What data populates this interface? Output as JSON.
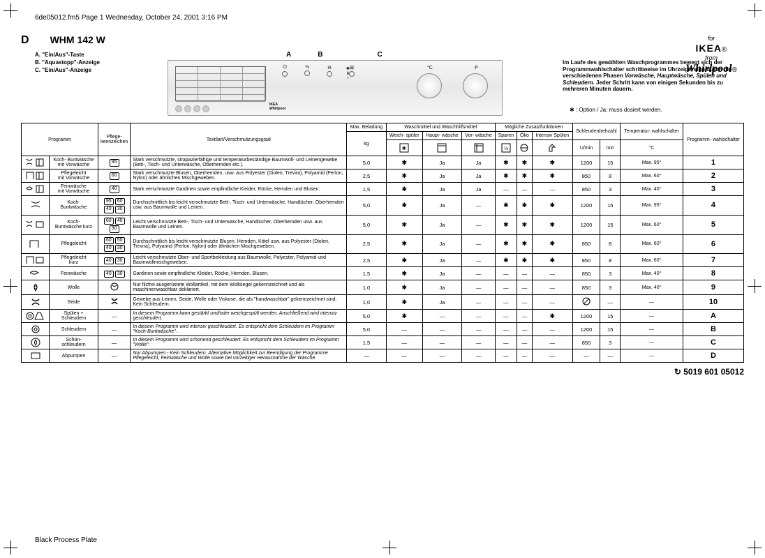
{
  "header_line": "6de05012.fm5  Page 1  Wednesday, October 24, 2001  3:16 PM",
  "logo": {
    "for": "for",
    "ikea": "IKEA",
    "from": "from",
    "whirlpool": "Whirlpool",
    "reg": "®"
  },
  "title": {
    "letter": "D",
    "model": "WHM 142 W"
  },
  "legend": {
    "a": "A. \"Ein/Aus\"-Taste",
    "b": "B. \"Aquastopp\"-Anzeige",
    "c": "C. \"Ein/Aus\"-Anzeige"
  },
  "panel_labels": {
    "a": "A",
    "b": "B",
    "c": "C"
  },
  "right_text": {
    "line": "Im Laufe des gewählten Waschprogrammes bewegt sich der Programmwahlschalter schrittweise im Uhrzeigersinn durch die verschiedenen Phasen ",
    "phases": "Vorwäsche, Hauptwäsche, Spülen und Schleudern.",
    "tail": " Jeder Schritt kann von einigen Sekunden bis zu mehreren Minuten dauern."
  },
  "option_note": "✱ : Option / Ja: muss dosiert werden.",
  "table_headers": {
    "programm": "Programm",
    "pflege": "Pflege-\nkennzeichen",
    "textil": "Textilart/Verschmutzungsgrad",
    "max_beladung": "Max.\nBeladung",
    "waschmittel": "Waschmittel und\nWaschhilfsmittel",
    "weich": "Weich-\nspüler",
    "haupt": "Haupt-\nwäsche",
    "vor": "Vor-\nwäsche",
    "zusatz": "Mögliche Zusatzfunktionen",
    "sparen": "Sparen",
    "oeko": "Öko",
    "intensiv": "Intensiv\nSpülen",
    "schleuder": "Schleuderdrehzahl",
    "umin": "U/min",
    "min": "min",
    "temp": "Temperatur-\nwahlschalter",
    "tempunit": "°C",
    "progwahl": "Programm-\nwahlschalter",
    "kg": "kg"
  },
  "rows": [
    {
      "name": "Koch- Buntwäsche\nmit Vorwäsche",
      "care": [
        "95"
      ],
      "desc": "Stark verschmutzte, strapazierfähige und temperaturbeständige Baumwoll- und Leinengewebe (Bett-, Tisch- und Unterwäsche, Oberhemden etc.).",
      "kg": "5,0",
      "w": "*",
      "h": "Ja",
      "v": "Ja",
      "s": "*",
      "o": "*",
      "i": "*",
      "rpm": "1200",
      "m": "15",
      "t": "Max. 95°",
      "p": "1"
    },
    {
      "name": "Pflegeleicht\nmit Vorwäsche",
      "care": [
        "60"
      ],
      "desc": "Stark verschmutzte Blusen, Oberhemden, usw. aus Polyester (Diolen, Trevira), Polyamid (Perlon, Nylon) oder ähnlichen Mischgeweben.",
      "kg": "2,5",
      "w": "*",
      "h": "Ja",
      "v": "Ja",
      "s": "*",
      "o": "*",
      "i": "*",
      "rpm": "850",
      "m": "8",
      "t": "Max. 60°",
      "p": "2"
    },
    {
      "name": "Feinwäsche\nmit Vorwäsche",
      "care": [
        "40"
      ],
      "desc": "Stark verschmutzte Gardinen sowie empfindliche Kleider, Röcke, Hemden und Blusen.",
      "kg": "1,5",
      "w": "*",
      "h": "Ja",
      "v": "Ja",
      "s": "—",
      "o": "—",
      "i": "—",
      "rpm": "850",
      "m": "3",
      "t": "Max. 40°",
      "p": "3"
    },
    {
      "name": "Koch-\nBuntwäsche",
      "care": [
        "95",
        "60",
        "40",
        "30"
      ],
      "desc": "Durchschnittlich bis leicht verschmutzte Bett-, Tisch- und Unterwäsche, Handtücher, Oberhemden usw. aus Baumwolle und Leinen.",
      "kg": "5,0",
      "w": "*",
      "h": "Ja",
      "v": "—",
      "s": "*",
      "o": "*",
      "i": "*",
      "rpm": "1200",
      "m": "15",
      "t": "Max. 95°",
      "p": "4"
    },
    {
      "name": "Koch-\nBuntwäsche kurz",
      "care": [
        "60",
        "40",
        "30"
      ],
      "desc": "Leicht verschmutzte Bett-, Tisch- und Unterwäsche, Handtücher, Oberhemden usw. aus Baumwolle und Leinen.",
      "kg": "5,0",
      "w": "*",
      "h": "Ja",
      "v": "—",
      "s": "*",
      "o": "*",
      "i": "*",
      "rpm": "1200",
      "m": "15",
      "t": "Max. 60°",
      "p": "5"
    },
    {
      "name": "Pflegeleicht",
      "care": [
        "60",
        "50",
        "40",
        "30"
      ],
      "desc": "Durchschnittlich bis leicht verschmutzte Blusen, Hemden, Kittel usw. aus Polyester (Diolen, Trevira), Polyamid (Perlon, Nylon) oder ähnlichen Mischgeweben.",
      "kg": "2,5",
      "w": "*",
      "h": "Ja",
      "v": "—",
      "s": "*",
      "o": "*",
      "i": "*",
      "rpm": "850",
      "m": "8",
      "t": "Max. 60°",
      "p": "6"
    },
    {
      "name": "Pflegeleicht\nkurz",
      "care": [
        "40",
        "30"
      ],
      "desc": "Leicht verschmutzte Ober- und Sportbekleidung aus Baumwolle, Polyester, Polyamid und Baumwollmischgeweben.",
      "kg": "2,5",
      "w": "*",
      "h": "Ja",
      "v": "—",
      "s": "*",
      "o": "*",
      "i": "*",
      "rpm": "850",
      "m": "8",
      "t": "Max. 60°",
      "p": "7"
    },
    {
      "name": "Feinwäsche",
      "care": [
        "40",
        "30"
      ],
      "desc": "Gardinen sowie empfindliche Kleider, Röcke, Hemden, Blusen.",
      "kg": "1,5",
      "w": "*",
      "h": "Ja",
      "v": "—",
      "s": "—",
      "o": "—",
      "i": "—",
      "rpm": "850",
      "m": "3",
      "t": "Max. 40°",
      "p": "8"
    },
    {
      "name": "Wolle",
      "care": [
        "wool"
      ],
      "desc": "Nur filzfrei ausgerüstete Wollartikel, mit dem Wollsiegel gekennzeichnet und als maschinenwaschbar deklariert.",
      "kg": "1,0",
      "w": "*",
      "h": "Ja",
      "v": "—",
      "s": "—",
      "o": "—",
      "i": "—",
      "rpm": "850",
      "m": "3",
      "t": "Max. 40°",
      "p": "9"
    },
    {
      "name": "Seide",
      "care": [
        "silk"
      ],
      "desc": "Gewebe aus Leinen, Seide, Wolle oder Viskose, die als \"handwaschbar\" gekennzeichnet sind. Kein Schleudern.",
      "kg": "1,0",
      "w": "*",
      "h": "Ja",
      "v": "—",
      "s": "—",
      "o": "—",
      "i": "—",
      "rpm": "nospin",
      "m": "—",
      "t": "—",
      "p": "10"
    },
    {
      "name": "Spülen +\nSchleudern",
      "care": [
        "—"
      ],
      "desc": "In diesem Programm kann gestärkt und/oder weichgespült werden. Anschließend wird intensiv geschleudert.",
      "kg": "5,0",
      "w": "*",
      "h": "—",
      "v": "—",
      "s": "—",
      "o": "—",
      "i": "*",
      "rpm": "1200",
      "m": "15",
      "t": "—",
      "p": "A",
      "it": true
    },
    {
      "name": "Schleudern",
      "care": [
        "—"
      ],
      "desc": "In diesem Programm wird intensiv geschleudert. Es entspricht dem Schleudern im Programm \"Koch-Buntwäsche\".",
      "kg": "5,0",
      "w": "—",
      "h": "—",
      "v": "—",
      "s": "—",
      "o": "—",
      "i": "—",
      "rpm": "1200",
      "m": "15",
      "t": "—",
      "p": "B",
      "it": true
    },
    {
      "name": "Schon-\nschleudern",
      "care": [
        "—"
      ],
      "desc": "In diesem Programm wird schonend geschleudert. Es entspricht dem Schleudern im Programm \"Wolle\".",
      "kg": "1,5",
      "w": "—",
      "h": "—",
      "v": "—",
      "s": "—",
      "o": "—",
      "i": "—",
      "rpm": "850",
      "m": "3",
      "t": "—",
      "p": "C",
      "it": true
    },
    {
      "name": "Abpumpen",
      "care": [
        "—"
      ],
      "desc": "Nur Abpumpen - Kein Schleudern. Alternative Möglichkeit zur Beendigung der Programme Pflegeleicht, Feinwäsche und Wolle sowie bei vorzeitiger Herausnahme der Wäsche.",
      "kg": "—",
      "w": "—",
      "h": "—",
      "v": "—",
      "s": "—",
      "o": "—",
      "i": "—",
      "rpm": "—",
      "m": "—",
      "t": "—",
      "p": "D",
      "it": true
    }
  ],
  "footer_code": "5019 601 05012",
  "footer_left": "Black Process Plate"
}
